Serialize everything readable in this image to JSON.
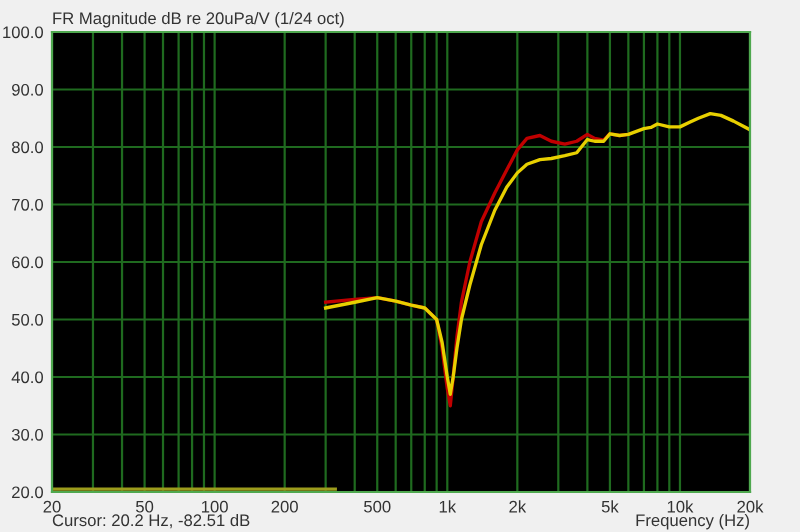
{
  "chart_data": {
    "type": "line",
    "title": "FR Magnitude dB re 20uPa/V (1/24 oct)",
    "xlabel": "Frequency (Hz)",
    "annotations": [
      "Cursor: 20.2 Hz, -82.51 dB"
    ],
    "log": "x",
    "grid": true,
    "legend": false,
    "marker": "none",
    "line_style": "solid",
    "xlim": [
      20,
      20000
    ],
    "ylim": [
      20,
      100
    ],
    "xticks": [
      20,
      {
        "value": 30,
        "label": null
      },
      {
        "value": 40,
        "label": null
      },
      50,
      {
        "value": 60,
        "label": null
      },
      {
        "value": 70,
        "label": null
      },
      {
        "value": 80,
        "label": null
      },
      {
        "value": 90,
        "label": null
      },
      100,
      200,
      {
        "value": 300,
        "label": null
      },
      {
        "value": 400,
        "label": null
      },
      500,
      {
        "value": 600,
        "label": null
      },
      {
        "value": 700,
        "label": null
      },
      {
        "value": 800,
        "label": null
      },
      {
        "value": 900,
        "label": null
      },
      {
        "value": 1000,
        "label": "1k"
      },
      {
        "value": 2000,
        "label": "2k"
      },
      {
        "value": 3000,
        "label": null
      },
      {
        "value": 4000,
        "label": null
      },
      {
        "value": 5000,
        "label": "5k"
      },
      {
        "value": 6000,
        "label": null
      },
      {
        "value": 7000,
        "label": null
      },
      {
        "value": 8000,
        "label": null
      },
      {
        "value": 9000,
        "label": null
      },
      {
        "value": 10000,
        "label": "10k"
      },
      {
        "value": 20000,
        "label": "20k"
      }
    ],
    "yticks": [
      {
        "value": 20,
        "label": "20.0"
      },
      {
        "value": 30,
        "label": "30.0"
      },
      {
        "value": 40,
        "label": "40.0"
      },
      {
        "value": 50,
        "label": "50.0"
      },
      {
        "value": 60,
        "label": "60.0"
      },
      {
        "value": 70,
        "label": "70.0"
      },
      {
        "value": 80,
        "label": "80.0"
      },
      {
        "value": 90,
        "label": "90.0"
      },
      {
        "value": 100,
        "label": "100.0"
      }
    ],
    "series": [
      {
        "color": "#9c9c1c",
        "x": [
          20,
          330
        ],
        "values": [
          20.5,
          20.5
        ]
      },
      {
        "color": "#c00000",
        "x": [
          300,
          400,
          500,
          600,
          700,
          800,
          900,
          950,
          1000,
          1030,
          1060,
          1100,
          1150,
          1250,
          1400,
          1600,
          1800,
          2000,
          2200,
          2500,
          2800,
          3200,
          3600,
          4000,
          4300,
          4700,
          5000,
          5500,
          6000
        ],
        "values": [
          53,
          53.5,
          53.8,
          53.2,
          52.5,
          52,
          50,
          45,
          38,
          35,
          40,
          47,
          53,
          60,
          67,
          72,
          76,
          79.5,
          81.5,
          82,
          81,
          80.5,
          81,
          82.2,
          81.5,
          81.2,
          82.3,
          82,
          82.2
        ]
      },
      {
        "color": "#e8d000",
        "x": [
          300,
          400,
          500,
          600,
          700,
          800,
          900,
          950,
          1000,
          1030,
          1060,
          1100,
          1150,
          1250,
          1400,
          1600,
          1800,
          2000,
          2200,
          2500,
          2800,
          3200,
          3600,
          4000,
          4300,
          4700,
          5000,
          5500,
          6000,
          7000,
          7500,
          8000,
          9000,
          10000,
          11000,
          12000,
          13500,
          15000,
          17000,
          20000
        ],
        "values": [
          52,
          53,
          53.8,
          53.2,
          52.5,
          52,
          50,
          46,
          40,
          37,
          40,
          45,
          50,
          56,
          63,
          69,
          73,
          75.5,
          77,
          77.8,
          78,
          78.5,
          79,
          81.3,
          81,
          81,
          82.3,
          82,
          82.2,
          83.2,
          83.4,
          84,
          83.5,
          83.5,
          84.3,
          85,
          85.8,
          85.5,
          84.5,
          83
        ]
      }
    ]
  }
}
